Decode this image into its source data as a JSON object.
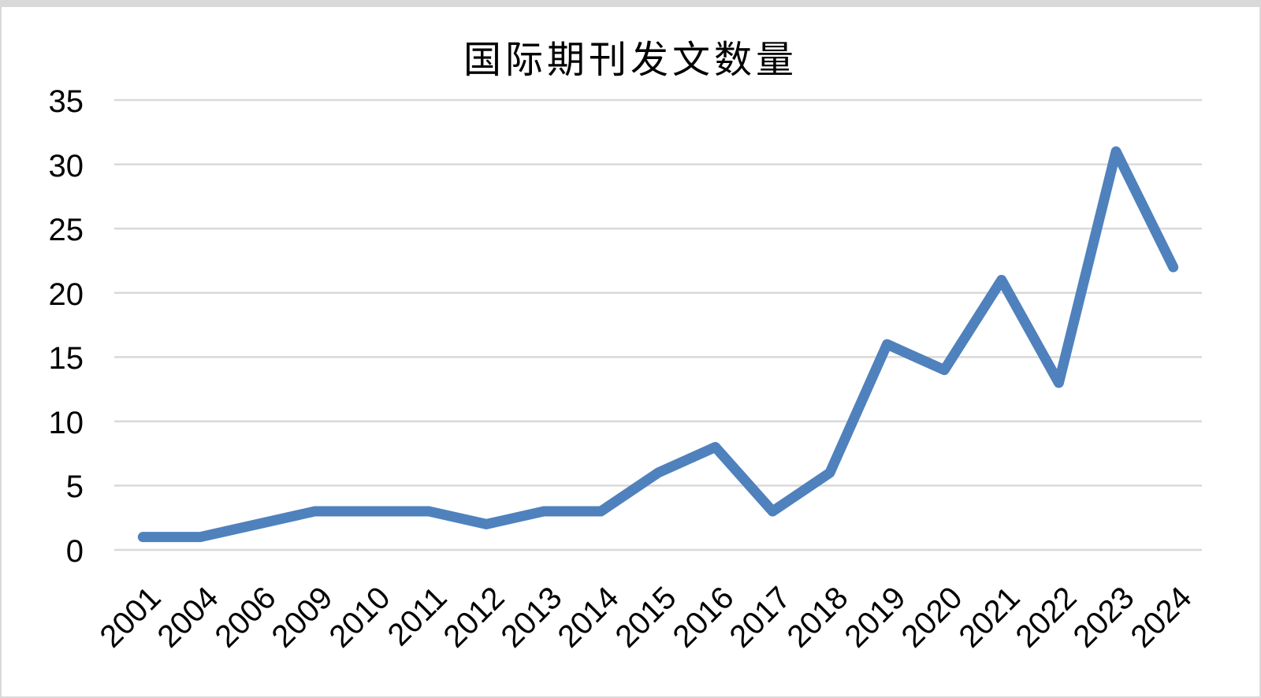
{
  "page": {
    "background_color": "#ffffff",
    "border_color": "#d9d9d9"
  },
  "chart_data": {
    "type": "line",
    "title": "国际期刊发文数量",
    "categories": [
      "2001",
      "2004",
      "2006",
      "2009",
      "2010",
      "2011",
      "2012",
      "2013",
      "2014",
      "2015",
      "2016",
      "2017",
      "2018",
      "2019",
      "2020",
      "2021",
      "2022",
      "2023",
      "2024"
    ],
    "series": [
      {
        "name": "国际期刊发文数量",
        "values": [
          1,
          1,
          2,
          3,
          3,
          3,
          2,
          3,
          3,
          6,
          8,
          3,
          6,
          16,
          14,
          21,
          13,
          31,
          22
        ]
      }
    ],
    "xlabel": "",
    "ylabel": "",
    "ylim": [
      0,
      35
    ],
    "yticks": [
      0,
      5,
      10,
      15,
      20,
      25,
      30,
      35
    ],
    "x_tick_rotation_deg": 45,
    "grid": "horizontal-only",
    "legend": "none",
    "line_color": "#4F81BD",
    "line_width": 13,
    "gridline_color": "#D9D9D9",
    "text_color": "#000000"
  }
}
